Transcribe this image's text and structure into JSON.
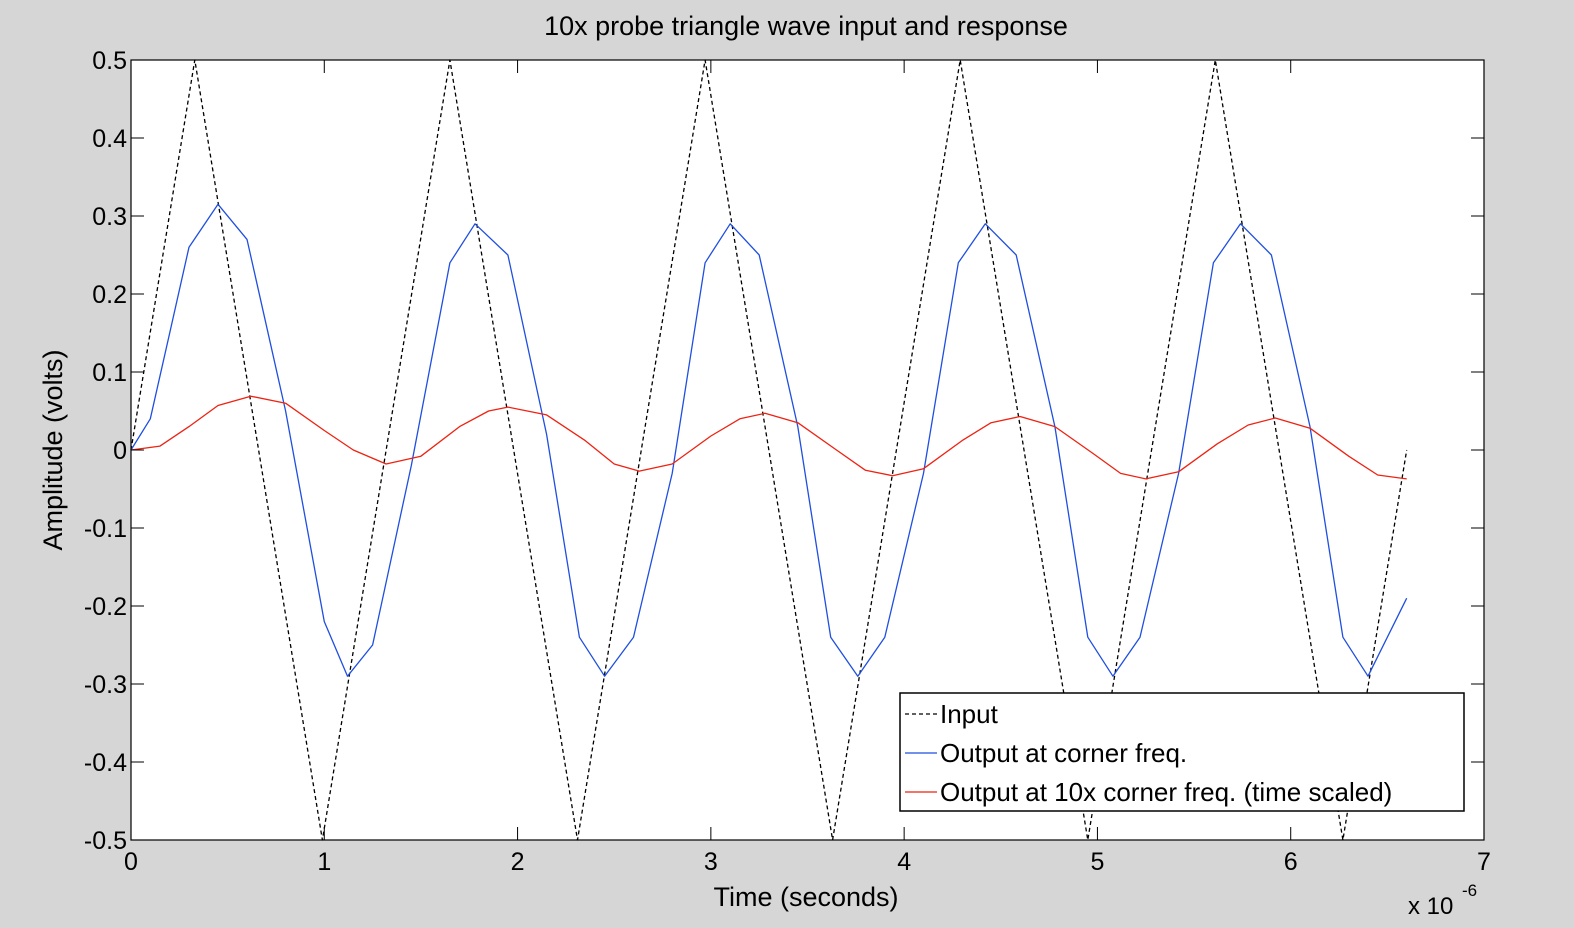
{
  "chart_data": {
    "type": "line",
    "title": "10x probe triangle wave input and response",
    "xlabel": "Time (seconds)",
    "ylabel": "Amplitude (volts)",
    "x_exponent_label": {
      "base": "x 10",
      "exponent": "-6"
    },
    "xlim": [
      0,
      7
    ],
    "ylim": [
      -0.5,
      0.5
    ],
    "xticks": [
      "0",
      "1",
      "2",
      "3",
      "4",
      "5",
      "6",
      "7"
    ],
    "yticks": [
      "0.5",
      "0.4",
      "0.3",
      "0.2",
      "0.1",
      "0",
      "-0.1",
      "-0.2",
      "-0.3",
      "-0.4",
      "-0.5"
    ],
    "grid": false,
    "legend_position": "bottom-right",
    "background": "#ffffff",
    "figure_background": "#d6d6d6",
    "series": [
      {
        "name": "Input",
        "color": "#000000",
        "style": "dashed",
        "x": [
          0,
          0.33,
          0.99,
          1.65,
          2.31,
          2.97,
          3.63,
          4.29,
          4.95,
          5.61,
          6.27,
          6.6
        ],
        "y": [
          0,
          0.5,
          -0.5,
          0.5,
          -0.5,
          0.5,
          -0.5,
          0.5,
          -0.5,
          0.5,
          -0.5,
          0
        ]
      },
      {
        "name": "Output at corner freq.",
        "color": "#1f4fe0",
        "style": "solid",
        "x": [
          0,
          0.1,
          0.2,
          0.3,
          0.45,
          0.6,
          0.8,
          1.0,
          1.12,
          1.25,
          1.45,
          1.65,
          1.78,
          1.95,
          2.15,
          2.32,
          2.45,
          2.6,
          2.8,
          2.97,
          3.1,
          3.25,
          3.45,
          3.62,
          3.76,
          3.9,
          4.1,
          4.28,
          4.42,
          4.58,
          4.78,
          4.95,
          5.08,
          5.22,
          5.42,
          5.6,
          5.74,
          5.9,
          6.1,
          6.27,
          6.4,
          6.6
        ],
        "y": [
          0,
          0.04,
          0.15,
          0.26,
          0.315,
          0.27,
          0.05,
          -0.22,
          -0.29,
          -0.25,
          -0.02,
          0.24,
          0.29,
          0.25,
          0.02,
          -0.24,
          -0.29,
          -0.24,
          -0.03,
          0.24,
          0.29,
          0.25,
          0.03,
          -0.24,
          -0.29,
          -0.24,
          -0.03,
          0.24,
          0.29,
          0.25,
          0.03,
          -0.24,
          -0.29,
          -0.24,
          -0.03,
          0.24,
          0.29,
          0.25,
          0.03,
          -0.24,
          -0.29,
          -0.19
        ]
      },
      {
        "name": "Output at 10x corner freq. (time scaled)",
        "color": "#ee2211",
        "style": "solid",
        "x": [
          0,
          0.15,
          0.3,
          0.45,
          0.62,
          0.8,
          1.0,
          1.15,
          1.32,
          1.5,
          1.7,
          1.85,
          1.95,
          2.15,
          2.35,
          2.5,
          2.63,
          2.8,
          3.0,
          3.15,
          3.28,
          3.45,
          3.65,
          3.8,
          3.94,
          4.1,
          4.3,
          4.45,
          4.6,
          4.78,
          4.98,
          5.12,
          5.25,
          5.42,
          5.62,
          5.78,
          5.92,
          6.1,
          6.3,
          6.45,
          6.6
        ],
        "y": [
          0,
          0.005,
          0.03,
          0.057,
          0.069,
          0.06,
          0.025,
          0.0,
          -0.018,
          -0.008,
          0.03,
          0.05,
          0.055,
          0.045,
          0.012,
          -0.018,
          -0.027,
          -0.018,
          0.018,
          0.04,
          0.047,
          0.035,
          0.0,
          -0.026,
          -0.033,
          -0.024,
          0.012,
          0.035,
          0.043,
          0.03,
          -0.005,
          -0.03,
          -0.037,
          -0.028,
          0.008,
          0.032,
          0.041,
          0.028,
          -0.008,
          -0.032,
          -0.037
        ]
      }
    ]
  }
}
